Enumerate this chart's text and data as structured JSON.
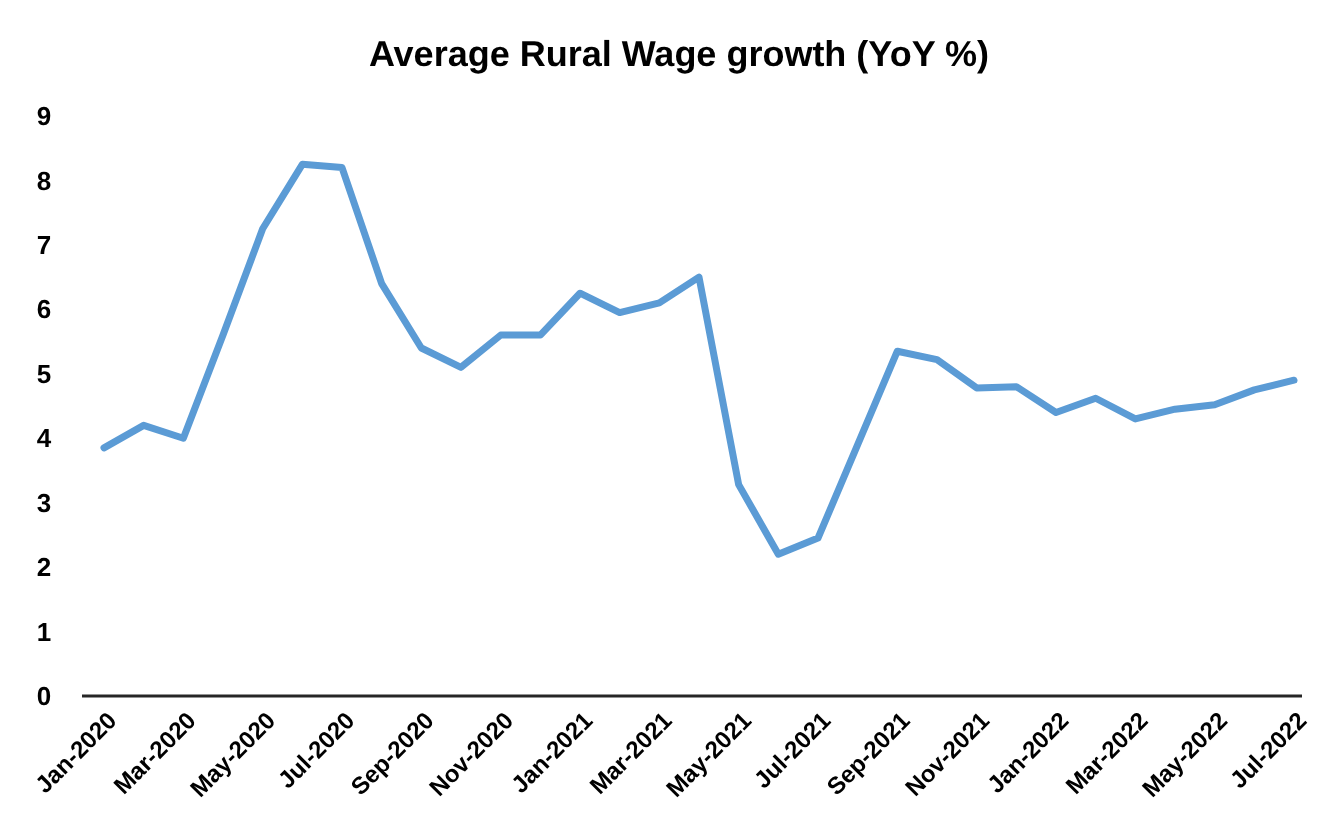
{
  "chart_data": {
    "type": "line",
    "title": "Average Rural Wage growth (YoY %)",
    "categories": [
      "Jan-2020",
      null,
      "Mar-2020",
      null,
      "May-2020",
      null,
      "Jul-2020",
      null,
      "Sep-2020",
      null,
      "Nov-2020",
      null,
      "Jan-2021",
      null,
      "Mar-2021",
      null,
      "May-2021",
      null,
      "Jul-2021",
      null,
      "Sep-2021",
      null,
      "Nov-2021",
      null,
      "Jan-2022",
      null,
      "Mar-2022",
      null,
      "May-2022",
      null,
      "Jul-2022"
    ],
    "series": [
      {
        "color": "#5b9bd5",
        "values": [
          3.85,
          4.2,
          4.0,
          5.6,
          7.25,
          8.25,
          8.2,
          6.4,
          5.4,
          5.1,
          5.6,
          5.6,
          6.25,
          5.95,
          6.1,
          6.5,
          3.28,
          2.2,
          2.45,
          3.9,
          5.35,
          5.22,
          4.78,
          4.8,
          4.4,
          4.62,
          4.3,
          4.45,
          4.52,
          4.75,
          4.9
        ]
      }
    ],
    "ylim": [
      0,
      9
    ],
    "yticks": [
      0,
      1,
      2,
      3,
      4,
      5,
      6,
      7,
      8,
      9
    ],
    "grid": false,
    "marker": "none",
    "line_style": "solid"
  }
}
